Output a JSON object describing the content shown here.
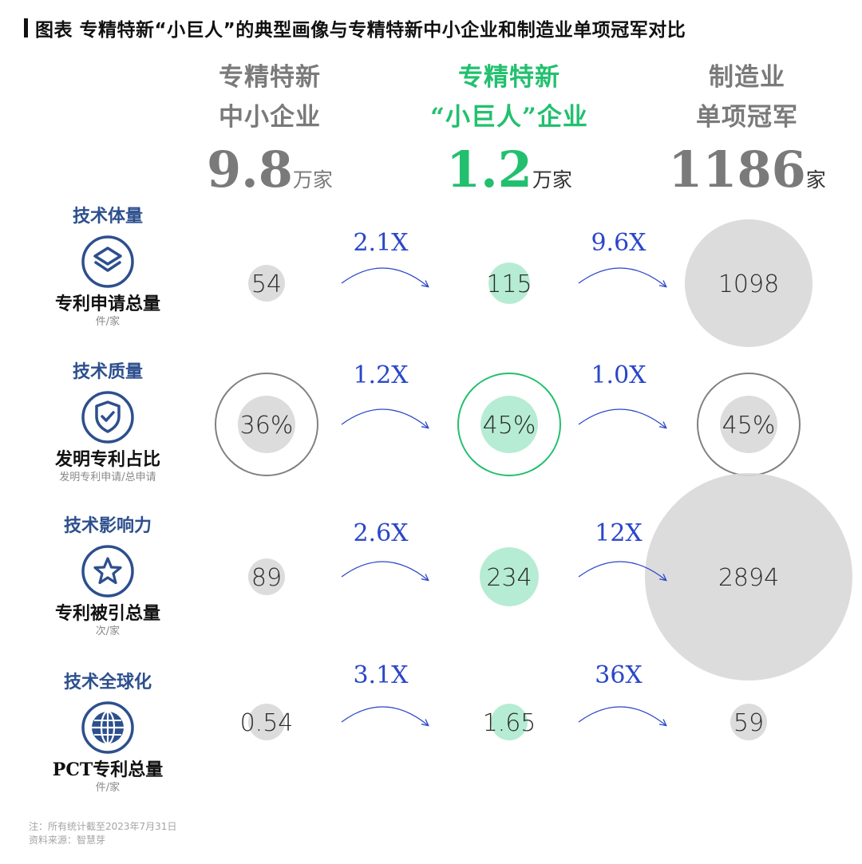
{
  "title": "图表 专精特新“小巨人”的典型画像与专精特新中小企业和制造业单项冠军对比",
  "columns": [
    {
      "line1": "专精特新",
      "line2": "中小企业",
      "count": "9.8",
      "unit": "万家"
    },
    {
      "line1": "专精特新",
      "line2": "“小巨人”企业",
      "count": "1.2",
      "unit": "万家"
    },
    {
      "line1": "制造业",
      "line2": "单项冠军",
      "count": "1186",
      "unit": "家"
    }
  ],
  "metrics": [
    {
      "category": "技术体量",
      "name": "专利申请总量",
      "unit": "件/家",
      "icon": "layers-icon"
    },
    {
      "category": "技术质量",
      "name": "发明专利占比",
      "unit": "发明专利申请/总申请",
      "icon": "shield-check-icon"
    },
    {
      "category": "技术影响力",
      "name": "专利被引总量",
      "unit": "次/家",
      "icon": "star-icon"
    },
    {
      "category": "技术全球化",
      "name": "PCT专利总量",
      "unit": "件/家",
      "icon": "globe-icon"
    }
  ],
  "footer": {
    "note": "注：所有统计截至2023年7月31日",
    "source": "资料来源：智慧芽"
  },
  "colors": {
    "gray_circle": "#d8d8d8",
    "green_circle": "#b6ecd3",
    "green_accent": "#22c06e",
    "blue_arrow": "#2a46c9",
    "navy_icon": "#2d4f8e",
    "header_gray": "#7a7a7a"
  },
  "chart_data": {
    "type": "bubble-comparison",
    "columns": [
      "专精特新中小企业",
      "专精特新“小巨人”企业",
      "制造业单项冠军"
    ],
    "rows": [
      {
        "metric": "专利申请总量",
        "values": [
          54,
          115,
          1098
        ],
        "labels": [
          "54",
          "115",
          "1098"
        ],
        "multipliers": [
          "2.1X",
          "9.6X"
        ]
      },
      {
        "metric": "发明专利占比",
        "values": [
          36,
          45,
          45
        ],
        "labels": [
          "36%",
          "45%",
          "45%"
        ],
        "multipliers": [
          "1.2X",
          "1.0X"
        ],
        "percent": true
      },
      {
        "metric": "专利被引总量",
        "values": [
          89,
          234,
          2894
        ],
        "labels": [
          "89",
          "234",
          "2894"
        ],
        "multipliers": [
          "2.6X",
          "12X"
        ]
      },
      {
        "metric": "PCT专利总量",
        "values": [
          0.54,
          1.65,
          59
        ],
        "labels": [
          "0.54",
          "1.65",
          "59"
        ],
        "multipliers": [
          "3.1X",
          "36X"
        ]
      }
    ]
  }
}
